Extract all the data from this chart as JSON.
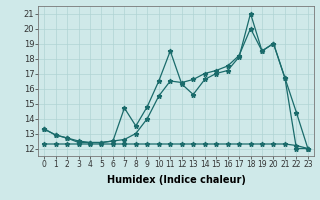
{
  "xlabel": "Humidex (Indice chaleur)",
  "background_color": "#cfe9e9",
  "line_color": "#1a6b6b",
  "xlim": [
    -0.5,
    23.5
  ],
  "ylim": [
    11.5,
    21.5
  ],
  "yticks": [
    12,
    13,
    14,
    15,
    16,
    17,
    18,
    19,
    20,
    21
  ],
  "xticks": [
    0,
    1,
    2,
    3,
    4,
    5,
    6,
    7,
    8,
    9,
    10,
    11,
    12,
    13,
    14,
    15,
    16,
    17,
    18,
    19,
    20,
    21,
    22,
    23
  ],
  "line1_x": [
    0,
    1,
    2,
    3,
    4,
    5,
    6,
    7,
    8,
    9,
    10,
    11,
    12,
    13,
    14,
    15,
    16,
    17,
    18,
    19,
    20,
    21,
    22,
    23
  ],
  "line1_y": [
    13.3,
    12.9,
    12.7,
    12.5,
    12.4,
    12.4,
    12.5,
    14.7,
    13.5,
    14.8,
    16.5,
    18.5,
    16.3,
    15.6,
    16.6,
    17.0,
    17.2,
    18.1,
    21.0,
    18.5,
    19.0,
    16.7,
    14.4,
    12.0
  ],
  "line2_x": [
    0,
    1,
    2,
    3,
    4,
    5,
    6,
    7,
    8,
    9,
    10,
    11,
    12,
    13,
    14,
    15,
    16,
    17,
    18,
    19,
    20,
    21,
    22,
    23
  ],
  "line2_y": [
    13.3,
    12.9,
    12.7,
    12.4,
    12.4,
    12.4,
    12.5,
    12.6,
    13.0,
    14.0,
    15.5,
    16.5,
    16.4,
    16.6,
    17.0,
    17.2,
    17.5,
    18.2,
    20.0,
    18.5,
    19.0,
    16.7,
    12.0,
    12.0
  ],
  "line3_x": [
    0,
    1,
    2,
    3,
    4,
    5,
    6,
    7,
    8,
    9,
    10,
    11,
    12,
    13,
    14,
    15,
    16,
    17,
    18,
    19,
    20,
    21,
    22,
    23
  ],
  "line3_y": [
    12.3,
    12.3,
    12.3,
    12.3,
    12.3,
    12.3,
    12.3,
    12.3,
    12.3,
    12.3,
    12.3,
    12.3,
    12.3,
    12.3,
    12.3,
    12.3,
    12.3,
    12.3,
    12.3,
    12.3,
    12.3,
    12.3,
    12.2,
    12.0
  ],
  "grid_color": "#b0d4d4",
  "tick_fontsize": 5.5,
  "xlabel_fontsize": 7
}
